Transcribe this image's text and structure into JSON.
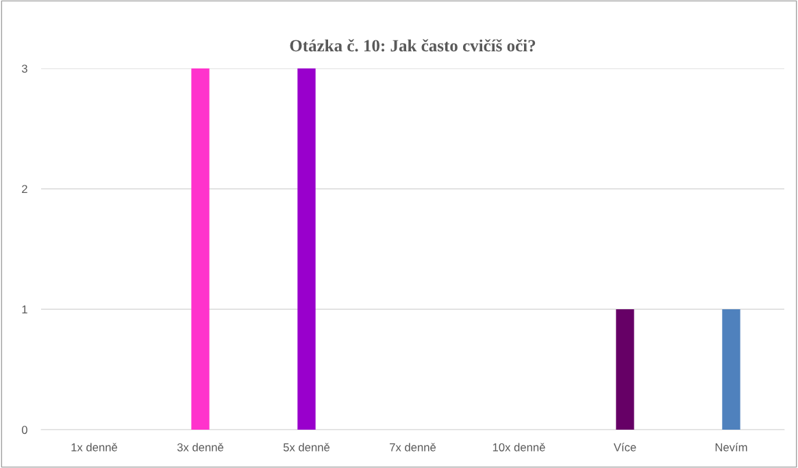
{
  "chart_data": {
    "type": "bar",
    "title": "Otázka č. 10: Jak často cvičíš oči?",
    "categories": [
      "1x denně",
      "3x denně",
      "5x denně",
      "7x denně",
      "10x denně",
      "Více",
      "Nevím"
    ],
    "values": [
      0,
      3,
      3,
      0,
      0,
      1,
      1
    ],
    "colors": [
      "#4f81bd",
      "#ff33cc",
      "#9900cc",
      "#4f81bd",
      "#4f81bd",
      "#660066",
      "#4f81bd"
    ],
    "ylim": [
      0,
      3
    ],
    "yticks": [
      0,
      1,
      2,
      3
    ],
    "grid": "y",
    "legend": false
  }
}
